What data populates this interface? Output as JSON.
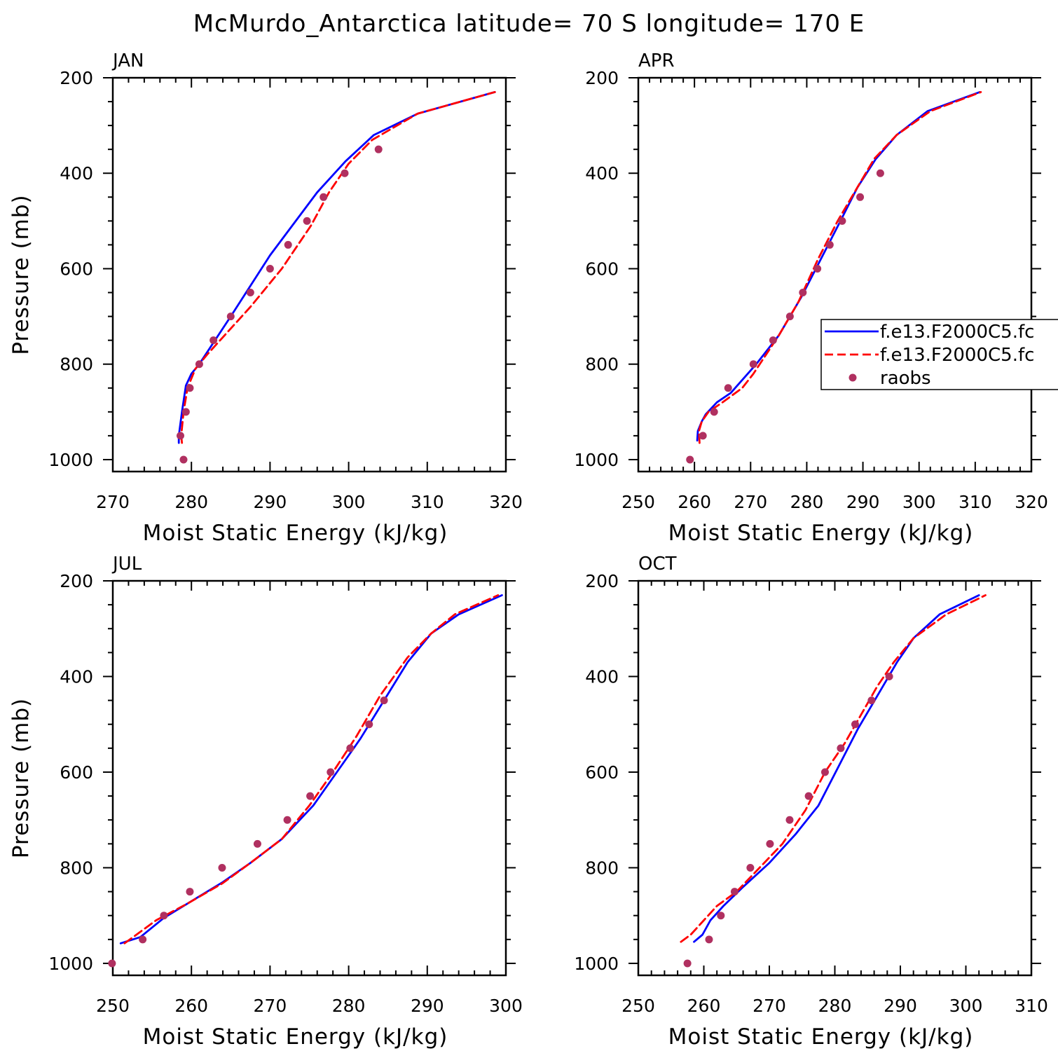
{
  "title": "McMurdo_Antarctica  latitude= 70 S longitude= 170 E",
  "chart_data": [
    {
      "type": "line",
      "panel": "JAN",
      "xlabel": "Moist Static Energy (kJ/kg)",
      "ylabel": "Pressure (mb)",
      "xlim": [
        270,
        320
      ],
      "ylim": [
        1025,
        200
      ],
      "xticks": [
        270,
        280,
        290,
        300,
        310,
        320
      ],
      "yticks": [
        200,
        400,
        600,
        800,
        1000
      ],
      "series": [
        {
          "name": "f.e13.F2000C5.fc",
          "style": "solid",
          "color": "#0000ff",
          "x": [
            278.4,
            278.4,
            278.8,
            279.3,
            280.0,
            281.0,
            285.0,
            290.0,
            296.0,
            299.6,
            303.2,
            308.8,
            318.6
          ],
          "y": [
            965,
            950,
            900,
            845,
            820,
            800,
            700,
            572,
            440,
            375,
            320,
            275,
            230
          ]
        },
        {
          "name": "f.e13.F2000C5.fc",
          "style": "dashed",
          "color": "#ff0000",
          "x": [
            278.8,
            278.7,
            279.0,
            279.5,
            280.5,
            282.0,
            287.5,
            291.5,
            295.2,
            297.5,
            300.0,
            303.0,
            308.8,
            318.6
          ],
          "y": [
            965,
            950,
            900,
            850,
            810,
            780,
            680,
            600,
            510,
            440,
            380,
            330,
            275,
            230
          ]
        },
        {
          "name": "raobs",
          "style": "markers",
          "color": "#b03060",
          "x": [
            279.0,
            278.6,
            279.3,
            279.8,
            281.0,
            282.8,
            285.0,
            287.5,
            290.0,
            292.3,
            294.7,
            296.8,
            299.5,
            303.8
          ],
          "y": [
            1000,
            950,
            900,
            850,
            800,
            750,
            700,
            650,
            600,
            550,
            500,
            450,
            400,
            350
          ]
        }
      ]
    },
    {
      "type": "line",
      "panel": "APR",
      "xlabel": "Moist Static Energy (kJ/kg)",
      "ylabel": "",
      "xlim": [
        250,
        320
      ],
      "ylim": [
        1025,
        200
      ],
      "xticks": [
        250,
        260,
        270,
        280,
        290,
        300,
        310,
        320
      ],
      "yticks": [
        200,
        400,
        600,
        800,
        1000
      ],
      "series": [
        {
          "name": "f.e13.F2000C5.fc",
          "style": "solid",
          "color": "#0000ff",
          "x": [
            260.5,
            260.6,
            261.3,
            262.0,
            264.0,
            266.5,
            271.0,
            275.0,
            279.0,
            282.5,
            286.0,
            289.0,
            292.3,
            296.0,
            301.5,
            310.8
          ],
          "y": [
            960,
            940,
            920,
            905,
            880,
            860,
            800,
            740,
            660,
            580,
            500,
            430,
            370,
            320,
            270,
            230
          ]
        },
        {
          "name": "f.e13.F2000C5.fc",
          "style": "dashed",
          "color": "#ff0000",
          "x": [
            260.9,
            260.8,
            261.3,
            262.5,
            265.0,
            268.5,
            270.5,
            275.0,
            278.5,
            282.0,
            285.5,
            288.5,
            292.0,
            296.0,
            302.0,
            311.0
          ],
          "y": [
            965,
            940,
            920,
            900,
            880,
            850,
            820,
            740,
            670,
            580,
            500,
            440,
            370,
            320,
            270,
            230
          ]
        },
        {
          "name": "raobs",
          "style": "markers",
          "color": "#b03060",
          "x": [
            259.2,
            261.5,
            263.5,
            266.0,
            270.5,
            274.0,
            277.0,
            279.3,
            281.9,
            284.1,
            286.3,
            289.5,
            293.1
          ],
          "y": [
            1000,
            950,
            900,
            850,
            800,
            750,
            700,
            650,
            600,
            550,
            500,
            450,
            400
          ]
        }
      ]
    },
    {
      "type": "line",
      "panel": "JUL",
      "xlabel": "Moist Static Energy (kJ/kg)",
      "ylabel": "Pressure (mb)",
      "xlim": [
        250,
        300
      ],
      "ylim": [
        1025,
        200
      ],
      "xticks": [
        250,
        260,
        270,
        280,
        290,
        300
      ],
      "yticks": [
        200,
        400,
        600,
        800,
        1000
      ],
      "series": [
        {
          "name": "f.e13.F2000C5.fc",
          "style": "solid",
          "color": "#0000ff",
          "x": [
            251.0,
            253.5,
            256.5,
            260.0,
            264.0,
            267.5,
            271.5,
            275.5,
            278.5,
            281.5,
            284.5,
            287.5,
            290.5,
            294.0,
            299.5
          ],
          "y": [
            958,
            945,
            905,
            870,
            830,
            790,
            740,
            670,
            600,
            530,
            450,
            370,
            310,
            270,
            230
          ]
        },
        {
          "name": "f.e13.F2000C5.fc",
          "style": "dashed",
          "color": "#ff0000",
          "x": [
            251.5,
            253.0,
            255.5,
            259.5,
            264.0,
            267.5,
            271.5,
            275.0,
            278.0,
            281.0,
            284.0,
            287.5,
            290.5,
            293.5,
            299.0
          ],
          "y": [
            958,
            940,
            910,
            875,
            832,
            790,
            740,
            670,
            600,
            525,
            440,
            360,
            310,
            270,
            230
          ]
        },
        {
          "name": "raobs",
          "style": "markers",
          "color": "#b03060",
          "x": [
            249.9,
            253.8,
            256.5,
            259.8,
            263.9,
            268.4,
            272.2,
            275.1,
            277.7,
            280.2,
            282.6,
            284.5
          ],
          "y": [
            1000,
            950,
            900,
            850,
            800,
            750,
            700,
            650,
            600,
            550,
            500,
            450
          ]
        }
      ]
    },
    {
      "type": "line",
      "panel": "OCT",
      "xlabel": "Moist Static Energy (kJ/kg)",
      "ylabel": "",
      "xlim": [
        250,
        310
      ],
      "ylim": [
        1025,
        200
      ],
      "xticks": [
        250,
        260,
        270,
        280,
        290,
        300,
        310
      ],
      "yticks": [
        200,
        400,
        600,
        800,
        1000
      ],
      "series": [
        {
          "name": "f.e13.F2000C5.fc",
          "style": "solid",
          "color": "#0000ff",
          "x": [
            258.5,
            259.8,
            261.0,
            263.0,
            266.0,
            270.0,
            274.0,
            277.5,
            280.5,
            283.5,
            286.5,
            289.5,
            292.0,
            296.0,
            302.0
          ],
          "y": [
            955,
            940,
            910,
            880,
            840,
            790,
            730,
            670,
            590,
            510,
            440,
            370,
            320,
            270,
            230
          ]
        },
        {
          "name": "f.e13.F2000C5.fc",
          "style": "dashed",
          "color": "#ff0000",
          "x": [
            256.5,
            258.0,
            260.0,
            262.0,
            265.0,
            268.5,
            272.0,
            275.5,
            278.5,
            281.5,
            284.0,
            286.5,
            289.0,
            292.0,
            297.0,
            303.0
          ],
          "y": [
            955,
            940,
            910,
            880,
            850,
            800,
            750,
            680,
            600,
            540,
            480,
            420,
            370,
            320,
            270,
            230
          ]
        },
        {
          "name": "raobs",
          "style": "markers",
          "color": "#b03060",
          "x": [
            257.5,
            260.8,
            262.6,
            264.7,
            267.1,
            270.1,
            273.1,
            276.0,
            278.5,
            280.9,
            283.1,
            285.6,
            288.3
          ],
          "y": [
            1000,
            950,
            900,
            850,
            800,
            750,
            700,
            650,
            600,
            550,
            500,
            450,
            400
          ]
        }
      ]
    }
  ],
  "legend": {
    "placement": "right of APR panel",
    "entries": [
      {
        "label": "f.e13.F2000C5.fc",
        "style": "solid",
        "color": "#0000ff"
      },
      {
        "label": "f.e13.F2000C5.fc",
        "style": "dashed",
        "color": "#ff0000"
      },
      {
        "label": "raobs",
        "style": "markers",
        "color": "#b03060"
      }
    ]
  }
}
